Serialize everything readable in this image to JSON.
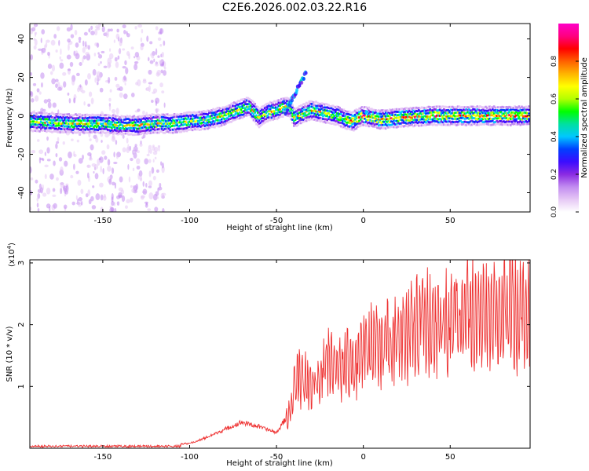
{
  "title": "C2E6.2026.002.03.22.R16",
  "chart_data": [
    {
      "type": "heatmap",
      "name": "spectrogram",
      "xlabel": "Height of straight line (km)",
      "ylabel": "Frequency (Hz)",
      "xlim": [
        -192,
        96
      ],
      "ylim": [
        -50,
        48
      ],
      "xticks": [
        -150,
        -100,
        -50,
        0,
        50
      ],
      "yticks": [
        -40,
        -20,
        0,
        20,
        40
      ],
      "ridge": {
        "x": [
          -192,
          -170,
          -150,
          -140,
          -130,
          -120,
          -110,
          -100,
          -90,
          -80,
          -72,
          -66,
          -60,
          -55,
          -50,
          -45,
          -42,
          -40,
          -35,
          -30,
          -25,
          -20,
          -15,
          -10,
          -6,
          -3,
          0,
          5,
          10,
          20,
          40,
          60,
          80,
          96
        ],
        "freq": [
          -3,
          -4,
          -4,
          -5,
          -5,
          -4,
          -4,
          -3,
          -2,
          0,
          3,
          5,
          -1,
          2,
          3,
          5,
          4,
          -1,
          1,
          3,
          2,
          1,
          0,
          -2,
          -3,
          -1,
          0,
          -1,
          -2,
          -1,
          0,
          0,
          0,
          0
        ]
      },
      "colorbar": {
        "label": "Normalized spectral amplitude",
        "min": 0.0,
        "max": 1.0,
        "ticks": [
          "0.0",
          "0.2",
          "0.4",
          "0.6",
          "0.8"
        ],
        "tick_values": [
          0.0,
          0.2,
          0.4,
          0.6,
          0.8
        ],
        "colors": [
          "#ffffff",
          "#e6c8f5",
          "#c28cf0",
          "#8a2be2",
          "#3b0cff",
          "#0040ff",
          "#00c8ff",
          "#00e0a0",
          "#00ff00",
          "#b4ff00",
          "#ffff00",
          "#ffb400",
          "#ff6000",
          "#ff0000",
          "#ff0080",
          "#ff00c8"
        ]
      }
    },
    {
      "type": "line",
      "name": "snr",
      "xlabel": "Height of straight line (km)",
      "ylabel": "SNR (10 * v/v)",
      "multiplier_label": "(x10",
      "multiplier_exp": "4",
      "multiplier_close": ")",
      "xlim": [
        -192,
        96
      ],
      "ylim": [
        0,
        3.05
      ],
      "xticks": [
        -150,
        -100,
        -50,
        0,
        50
      ],
      "yticks": [
        1,
        2,
        3
      ],
      "line_color": "#ee3030",
      "envelope": {
        "x": [
          -192,
          -120,
          -110,
          -100,
          -95,
          -90,
          -80,
          -70,
          -60,
          -50,
          -42,
          -38,
          -30,
          -25,
          -20,
          -15,
          -10,
          -5,
          0,
          10,
          20,
          30,
          40,
          50,
          60,
          70,
          80,
          96
        ],
        "y": [
          0.03,
          0.03,
          0.05,
          0.08,
          0.12,
          0.18,
          0.3,
          0.42,
          0.35,
          0.25,
          0.6,
          1.2,
          1.0,
          1.1,
          1.45,
          1.25,
          1.35,
          1.45,
          1.55,
          1.7,
          1.8,
          1.95,
          2.0,
          2.1,
          2.2,
          2.15,
          2.2,
          2.2
        ]
      }
    }
  ]
}
